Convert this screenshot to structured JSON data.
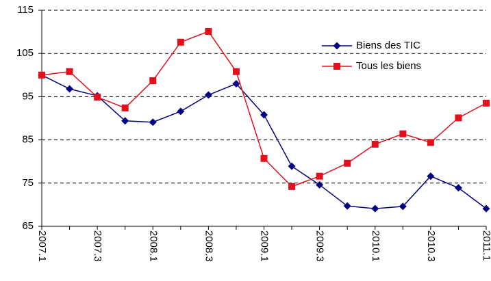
{
  "chart_data": {
    "type": "line",
    "categories": [
      "2007.1",
      null,
      "2007.3",
      null,
      "2008.1",
      null,
      "2008.3",
      null,
      "2009.1",
      null,
      "2009.3",
      null,
      "2010.1",
      null,
      "2010.3",
      null,
      "2011.1"
    ],
    "series": [
      {
        "name": "Biens des TIC",
        "color": "#000080",
        "marker": "diamond",
        "values": [
          100,
          96.8,
          95.2,
          89.4,
          89.1,
          91.6,
          95.4,
          98.0,
          90.8,
          78.9,
          74.6,
          69.7,
          69.1,
          69.6,
          76.6,
          73.9,
          69.1
        ]
      },
      {
        "name": "Tous les biens",
        "color": "#e3101c",
        "marker": "square",
        "values": [
          100,
          100.8,
          94.9,
          92.4,
          98.7,
          107.6,
          110.1,
          100.8,
          80.7,
          74.2,
          76.6,
          79.6,
          84.0,
          86.4,
          84.4,
          90.1,
          93.5
        ]
      }
    ],
    "ylim": [
      65,
      115
    ],
    "yticks": [
      65,
      75,
      85,
      95,
      105,
      115
    ],
    "grid": true,
    "legend": "upper right"
  }
}
